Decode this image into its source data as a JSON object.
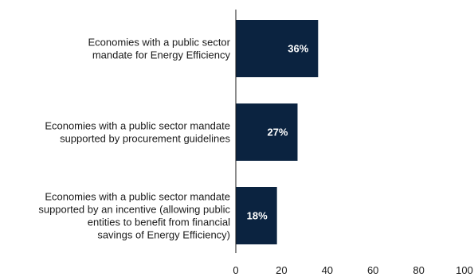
{
  "chart_data": {
    "type": "bar",
    "orientation": "horizontal",
    "categories": [
      [
        "Economies with a public sector",
        "mandate for Energy Efficiency"
      ],
      [
        "Economies with a public sector mandate",
        "supported by procurement guidelines"
      ],
      [
        "Economies with a public sector mandate",
        "supported by an incentive (allowing public",
        "entities to benefit from financial",
        "savings of Energy Efficiency)"
      ]
    ],
    "values": [
      36,
      27,
      18
    ],
    "data_labels": [
      "36%",
      "27%",
      "18%"
    ],
    "xlim": [
      0,
      100
    ],
    "xticks": [
      0,
      20,
      40,
      60,
      80,
      100
    ],
    "xtick_labels": [
      "0",
      "20",
      "40",
      "60",
      "80",
      "100"
    ],
    "title": "",
    "xlabel": "",
    "ylabel": "",
    "grid": false,
    "legend": "none",
    "colors": {
      "bar": "#0b2340",
      "axis": "#1a1a1a",
      "bar_label": "#ffffff"
    }
  }
}
